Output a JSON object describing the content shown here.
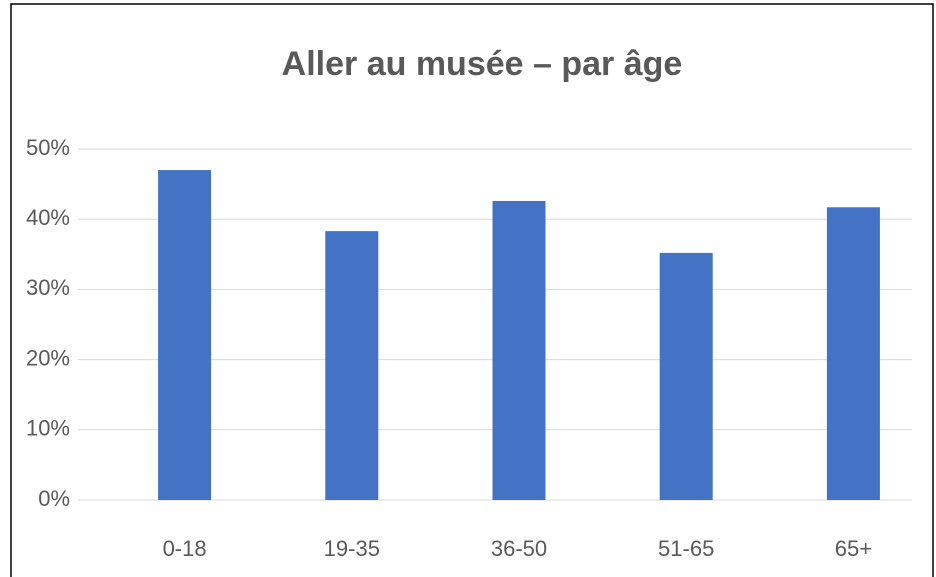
{
  "chart_data": {
    "type": "bar",
    "title": "Aller au musée – par âge",
    "categories": [
      "0-18",
      "19-35",
      "36-50",
      "51-65",
      "65+"
    ],
    "values": [
      47.0,
      38.3,
      42.6,
      35.2,
      41.7
    ],
    "color": "#4472c4",
    "ylim": [
      0,
      50
    ],
    "yticks": [
      {
        "value": 0,
        "label": "0%"
      },
      {
        "value": 10,
        "label": "10%"
      },
      {
        "value": 20,
        "label": "20%"
      },
      {
        "value": 30,
        "label": "30%"
      },
      {
        "value": 40,
        "label": "40%"
      },
      {
        "value": 50,
        "label": "50%"
      }
    ],
    "grid": true
  }
}
